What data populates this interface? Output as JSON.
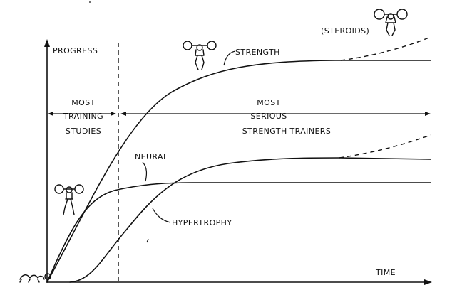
{
  "axes": {
    "y_label": "PROGRESS",
    "x_label": "TIME"
  },
  "regions": {
    "left": [
      "MOST",
      "TRAINING",
      "STUDIES"
    ],
    "right": [
      "MOST",
      "SERIOUS",
      "STRENGTH TRAINERS"
    ]
  },
  "curves": {
    "strength": "STRENGTH",
    "steroids": "(STEROIDS)",
    "neural": "NEURAL",
    "hypertrophy": "HYPERTROPHY"
  },
  "icons": [
    "weightlifter-icon",
    "weightlifter-icon",
    "weightlifter-icon",
    "crawling-baby-icon"
  ]
}
